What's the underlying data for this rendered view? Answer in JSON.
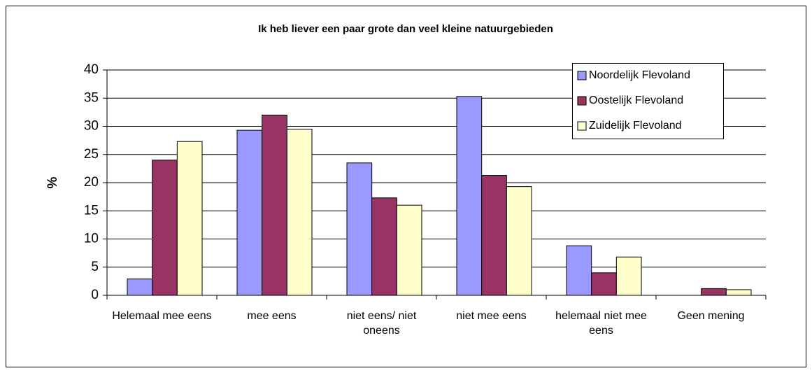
{
  "chart_data": {
    "type": "bar",
    "title": "Ik heb liever een paar grote dan veel kleine natuurgebieden",
    "ylabel": "%",
    "categories": [
      "Helemaal mee eens",
      "mee eens",
      "niet eens/ niet oneens",
      "niet mee eens",
      "helemaal niet mee eens",
      "Geen mening"
    ],
    "series": [
      {
        "name": "Noordelijk Flevoland",
        "color": "#9999ff",
        "values": [
          2.9,
          29.3,
          23.5,
          35.3,
          8.8,
          0
        ]
      },
      {
        "name": "Oostelijk Flevoland",
        "color": "#993366",
        "values": [
          24,
          32,
          17.3,
          21.3,
          4,
          1.2
        ]
      },
      {
        "name": "Zuidelijk Flevoland",
        "color": "#ffffcc",
        "values": [
          27.3,
          29.5,
          16,
          19.3,
          6.8,
          1
        ]
      }
    ],
    "ylim": [
      0,
      40
    ],
    "yticks": [
      0,
      5,
      10,
      15,
      20,
      25,
      30,
      35,
      40
    ],
    "grid": true,
    "legend": "upper right"
  }
}
